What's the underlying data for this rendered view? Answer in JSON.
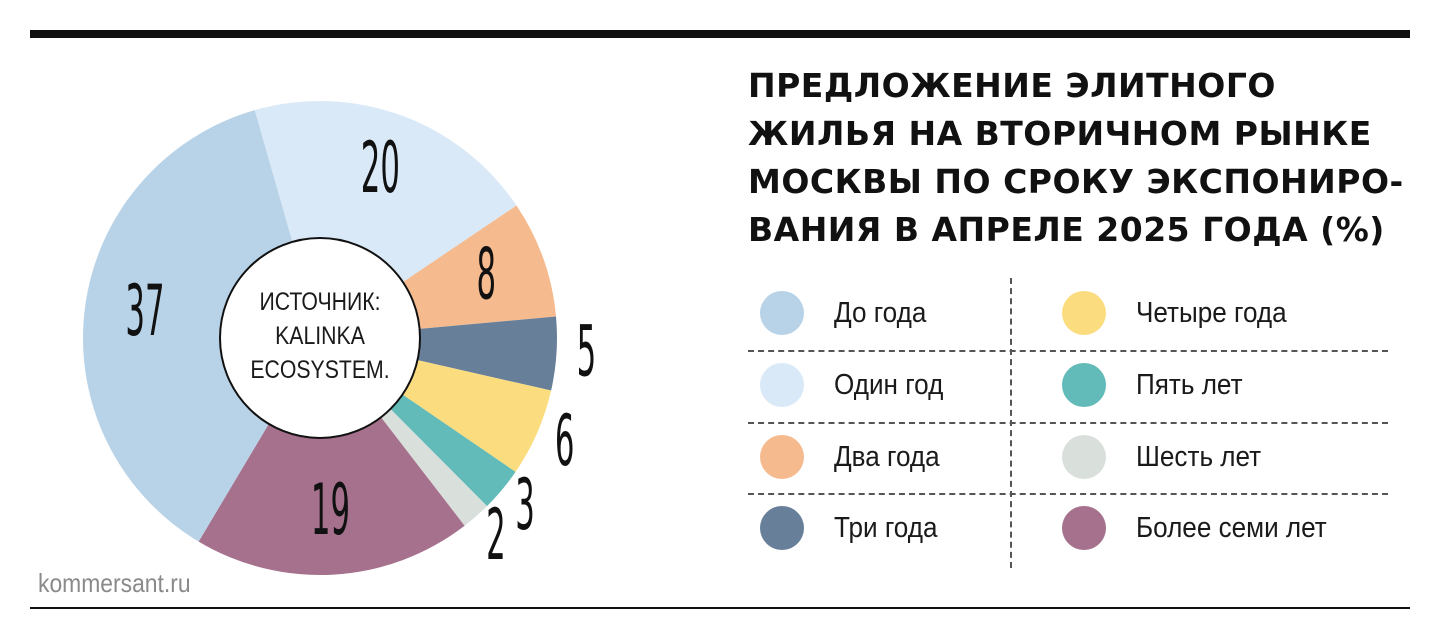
{
  "chart_data": {
    "type": "pie",
    "variant": "donut",
    "title": "ПРЕДЛОЖЕНИЕ ЭЛИТНОГО ЖИЛЬЯ НА ВТОРИЧНОМ РЫНКЕ МОСКВЫ ПО СРОКУ ЭКСПОНИРО-ВАНИЯ В АПРЕЛЕ 2025 ГОДА (%)",
    "title_lines": [
      "ПРЕДЛОЖЕНИЕ ЭЛИТНОГО",
      "ЖИЛЬЯ НА ВТОРИЧНОМ РЫНКЕ",
      "МОСКВЫ ПО СРОКУ ЭКСПОНИРО-",
      "ВАНИЯ В АПРЕЛЕ 2025 ГОДА (%)"
    ],
    "center_note_lines": [
      "ИСТОЧНИК:",
      "KALINKA",
      "ECOSYSTEM."
    ],
    "legend_placement": "right",
    "slices": [
      {
        "label": "Один год",
        "value": 20,
        "color": "#d9e9f8"
      },
      {
        "label": "Два года",
        "value": 8,
        "color": "#f5bb8f"
      },
      {
        "label": "Три года",
        "value": 5,
        "color": "#677f99"
      },
      {
        "label": "Четыре года",
        "value": 6,
        "color": "#fbdd7f"
      },
      {
        "label": "Пять лет",
        "value": 3,
        "color": "#62bbb8"
      },
      {
        "label": "Шесть лет",
        "value": 2,
        "color": "#d9e0dc"
      },
      {
        "label": "Более семи лет",
        "value": 19,
        "color": "#a6718d"
      },
      {
        "label": "До года",
        "value": 37,
        "color": "#b8d3e8"
      }
    ],
    "legend": [
      {
        "label": "До года",
        "color": "#b8d3e8"
      },
      {
        "label": "Один год",
        "color": "#d9e9f8"
      },
      {
        "label": "Два года",
        "color": "#f5bb8f"
      },
      {
        "label": "Три года",
        "color": "#677f99"
      },
      {
        "label": "Четыре года",
        "color": "#fbdd7f"
      },
      {
        "label": "Пять лет",
        "color": "#62bbb8"
      },
      {
        "label": "Шесть лет",
        "color": "#d9e0dc"
      },
      {
        "label": "Более семи лет",
        "color": "#a6718d"
      }
    ]
  },
  "footer": {
    "site": "kommersant.ru"
  }
}
